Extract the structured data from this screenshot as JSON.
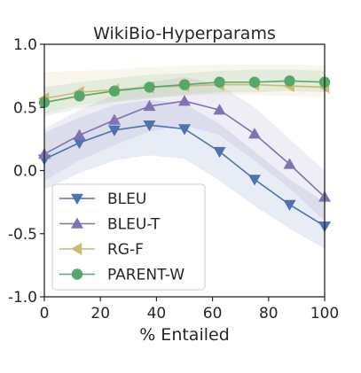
{
  "chart_data": {
    "type": "line",
    "title": "WikiBio-Hyperparams",
    "xlabel": "% Entailed",
    "ylabel": "",
    "xlim": [
      0,
      100
    ],
    "ylim": [
      -1.0,
      1.0
    ],
    "xticks": [
      "0",
      "20",
      "40",
      "60",
      "80",
      "100"
    ],
    "yticks": [
      "1.0",
      "0.5",
      "0.0",
      "-0.5",
      "-1.0"
    ],
    "grid": false,
    "legend_position": "lower-left",
    "x": [
      0,
      12.5,
      25,
      37.5,
      50,
      62.5,
      75,
      87.5,
      100
    ],
    "series": [
      {
        "name": "BLEU",
        "color": "#4c72b0",
        "marker": "triangle-down",
        "values": [
          0.09,
          0.22,
          0.32,
          0.36,
          0.33,
          0.15,
          -0.07,
          -0.27,
          -0.44
        ],
        "band_low": [
          -0.15,
          -0.02,
          0.08,
          0.12,
          0.09,
          -0.08,
          -0.28,
          -0.46,
          -0.62
        ],
        "band_high": [
          0.3,
          0.42,
          0.52,
          0.56,
          0.53,
          0.37,
          0.15,
          -0.07,
          -0.25
        ]
      },
      {
        "name": "BLEU-T",
        "color": "#8172b3",
        "marker": "triangle-up",
        "values": [
          0.13,
          0.28,
          0.4,
          0.51,
          0.55,
          0.48,
          0.29,
          0.05,
          -0.21
        ],
        "band_low": [
          -0.08,
          0.08,
          0.2,
          0.31,
          0.36,
          0.28,
          0.08,
          -0.14,
          -0.4
        ],
        "band_high": [
          0.33,
          0.48,
          0.6,
          0.7,
          0.74,
          0.68,
          0.5,
          0.25,
          0.0
        ]
      },
      {
        "name": "RG-F",
        "color": "#ccb974",
        "marker": "triangle-left",
        "values": [
          0.57,
          0.62,
          0.64,
          0.66,
          0.67,
          0.68,
          0.68,
          0.67,
          0.66
        ],
        "band_low": [
          0.45,
          0.52,
          0.55,
          0.58,
          0.59,
          0.6,
          0.6,
          0.59,
          0.58
        ],
        "band_high": [
          0.78,
          0.79,
          0.8,
          0.82,
          0.83,
          0.84,
          0.84,
          0.84,
          0.83
        ]
      },
      {
        "name": "PARENT-W",
        "color": "#55a868",
        "marker": "circle",
        "values": [
          0.54,
          0.59,
          0.63,
          0.66,
          0.68,
          0.7,
          0.7,
          0.71,
          0.7
        ],
        "band_low": [
          0.43,
          0.49,
          0.54,
          0.57,
          0.6,
          0.62,
          0.62,
          0.63,
          0.62
        ],
        "band_high": [
          0.66,
          0.7,
          0.73,
          0.76,
          0.77,
          0.79,
          0.8,
          0.8,
          0.79
        ]
      }
    ]
  }
}
